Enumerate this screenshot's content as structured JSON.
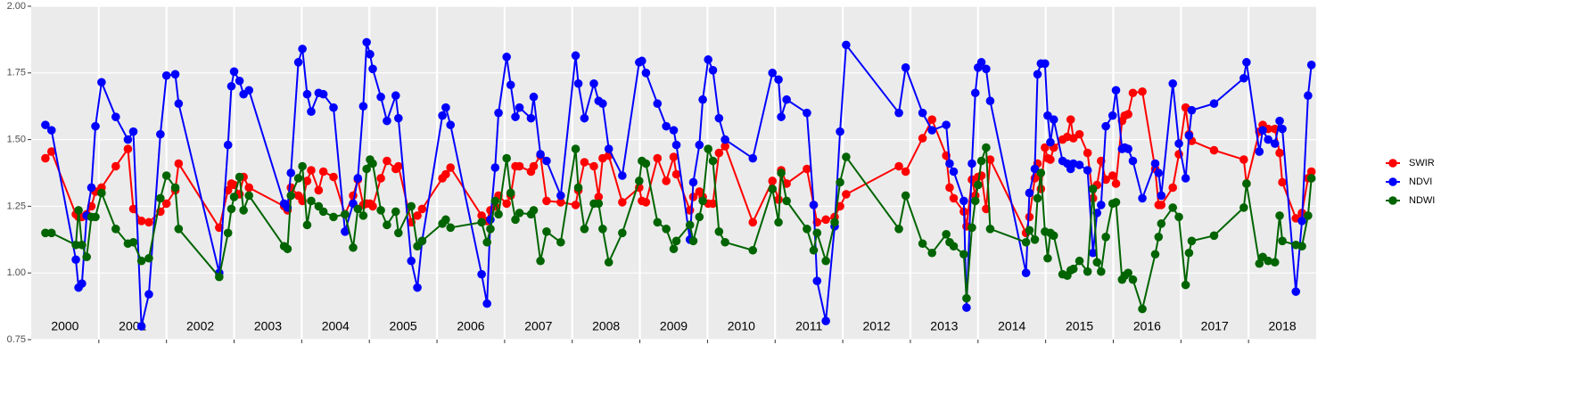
{
  "chart_data": {
    "type": "line",
    "x": [
      2000.21,
      2000.3,
      2000.66,
      2000.7,
      2000.75,
      2000.82,
      2000.89,
      2000.95,
      2001.04,
      2001.25,
      2001.43,
      2001.51,
      2001.63,
      2001.74,
      2001.91,
      2002.0,
      2002.13,
      2002.18,
      2002.78,
      2002.91,
      2002.96,
      2003.0,
      2003.08,
      2003.14,
      2003.22,
      2003.74,
      2003.79,
      2003.84,
      2003.95,
      2004.01,
      2004.08,
      2004.14,
      2004.25,
      2004.32,
      2004.47,
      2004.64,
      2004.76,
      2004.83,
      2004.91,
      2004.96,
      2005.01,
      2005.05,
      2005.17,
      2005.26,
      2005.39,
      2005.43,
      2005.62,
      2005.71,
      2005.78,
      2006.08,
      2006.13,
      2006.2,
      2006.66,
      2006.74,
      2006.79,
      2006.86,
      2006.91,
      2007.03,
      2007.09,
      2007.16,
      2007.22,
      2007.39,
      2007.43,
      2007.53,
      2007.62,
      2007.83,
      2008.05,
      2008.09,
      2008.18,
      2008.32,
      2008.39,
      2008.45,
      2008.54,
      2008.74,
      2008.99,
      2009.03,
      2009.09,
      2009.26,
      2009.39,
      2009.5,
      2009.54,
      2009.74,
      2009.79,
      2009.88,
      2009.93,
      2010.01,
      2010.08,
      2010.17,
      2010.26,
      2010.67,
      2010.96,
      2011.05,
      2011.09,
      2011.17,
      2011.47,
      2011.57,
      2011.62,
      2011.75,
      2011.88,
      2011.96,
      2012.05,
      2012.83,
      2012.93,
      2013.18,
      2013.32,
      2013.53,
      2013.58,
      2013.64,
      2013.79,
      2013.83,
      2013.91,
      2013.96,
      2014.0,
      2014.05,
      2014.12,
      2014.18,
      2014.71,
      2014.76,
      2014.84,
      2014.88,
      2014.93,
      2014.99,
      2015.03,
      2015.07,
      2015.12,
      2015.25,
      2015.32,
      2015.37,
      2015.41,
      2015.5,
      2015.62,
      2015.7,
      2015.76,
      2015.82,
      2015.89,
      2015.99,
      2016.04,
      2016.13,
      2016.17,
      2016.22,
      2016.29,
      2016.43,
      2016.62,
      2016.67,
      2016.71,
      2016.88,
      2016.97,
      2017.07,
      2017.12,
      2017.16,
      2017.49,
      2017.93,
      2017.97,
      2018.16,
      2018.21,
      2018.29,
      2018.39,
      2018.46,
      2018.5,
      2018.7,
      2018.79,
      2018.88,
      2018.93
    ],
    "series": [
      {
        "name": "SWIR",
        "color": "#ff0000",
        "values": [
          1.43,
          1.455,
          1.22,
          1.21,
          1.21,
          1.22,
          1.25,
          1.305,
          1.32,
          1.4,
          1.465,
          1.24,
          1.195,
          1.19,
          1.23,
          1.26,
          1.31,
          1.41,
          1.17,
          1.31,
          1.335,
          1.33,
          1.295,
          1.36,
          1.32,
          1.25,
          1.235,
          1.32,
          1.29,
          1.27,
          1.345,
          1.385,
          1.31,
          1.38,
          1.36,
          1.22,
          1.29,
          1.35,
          1.255,
          1.26,
          1.26,
          1.25,
          1.355,
          1.42,
          1.39,
          1.4,
          1.19,
          1.215,
          1.24,
          1.355,
          1.37,
          1.395,
          1.215,
          1.195,
          1.235,
          1.25,
          1.29,
          1.26,
          1.29,
          1.4,
          1.4,
          1.38,
          1.4,
          1.44,
          1.27,
          1.265,
          1.255,
          1.31,
          1.415,
          1.4,
          1.285,
          1.43,
          1.44,
          1.265,
          1.32,
          1.27,
          1.265,
          1.43,
          1.345,
          1.435,
          1.37,
          1.235,
          1.285,
          1.305,
          1.285,
          1.26,
          1.26,
          1.45,
          1.475,
          1.19,
          1.345,
          1.275,
          1.385,
          1.335,
          1.39,
          1.255,
          1.19,
          1.2,
          1.21,
          1.25,
          1.295,
          1.4,
          1.38,
          1.505,
          1.575,
          1.44,
          1.32,
          1.28,
          1.23,
          1.175,
          1.35,
          1.29,
          1.36,
          1.365,
          1.24,
          1.425,
          1.15,
          1.21,
          1.355,
          1.41,
          1.315,
          1.47,
          1.43,
          1.425,
          1.47,
          1.5,
          1.51,
          1.575,
          1.505,
          1.52,
          1.45,
          1.28,
          1.33,
          1.42,
          1.35,
          1.365,
          1.335,
          1.57,
          1.59,
          1.595,
          1.675,
          1.68,
          1.39,
          1.255,
          1.255,
          1.32,
          1.445,
          1.62,
          1.52,
          1.495,
          1.46,
          1.425,
          1.335,
          1.53,
          1.555,
          1.54,
          1.54,
          1.45,
          1.34,
          1.205,
          1.225,
          1.355,
          1.38
        ]
      },
      {
        "name": "NDVI",
        "color": "#0000ff",
        "values": [
          1.555,
          1.535,
          1.05,
          0.945,
          0.96,
          1.215,
          1.32,
          1.55,
          1.715,
          1.585,
          1.5,
          1.53,
          0.8,
          0.92,
          1.52,
          1.74,
          1.745,
          1.635,
          1.0,
          1.48,
          1.7,
          1.755,
          1.72,
          1.67,
          1.685,
          1.26,
          1.245,
          1.375,
          1.79,
          1.84,
          1.67,
          1.605,
          1.675,
          1.67,
          1.62,
          1.155,
          1.26,
          1.355,
          1.625,
          1.865,
          1.82,
          1.765,
          1.66,
          1.57,
          1.665,
          1.58,
          1.045,
          0.945,
          1.12,
          1.59,
          1.62,
          1.555,
          0.995,
          0.885,
          1.2,
          1.395,
          1.6,
          1.81,
          1.705,
          1.585,
          1.62,
          1.58,
          1.66,
          1.445,
          1.42,
          1.29,
          1.815,
          1.71,
          1.58,
          1.71,
          1.645,
          1.635,
          1.465,
          1.365,
          1.79,
          1.795,
          1.75,
          1.635,
          1.55,
          1.535,
          1.48,
          1.125,
          1.34,
          1.48,
          1.65,
          1.8,
          1.76,
          1.58,
          1.5,
          1.43,
          1.75,
          1.725,
          1.585,
          1.65,
          1.6,
          1.255,
          0.97,
          0.82,
          1.175,
          1.53,
          1.855,
          1.6,
          1.77,
          1.6,
          1.535,
          1.555,
          1.41,
          1.38,
          1.27,
          0.87,
          1.41,
          1.675,
          1.77,
          1.79,
          1.765,
          1.645,
          1.0,
          1.3,
          1.39,
          1.745,
          1.785,
          1.785,
          1.59,
          1.49,
          1.575,
          1.42,
          1.41,
          1.39,
          1.41,
          1.405,
          1.385,
          1.075,
          1.225,
          1.255,
          1.55,
          1.59,
          1.685,
          1.465,
          1.47,
          1.465,
          1.42,
          1.28,
          1.41,
          1.375,
          1.29,
          1.71,
          1.485,
          1.355,
          1.515,
          1.61,
          1.635,
          1.73,
          1.79,
          1.455,
          1.535,
          1.5,
          1.485,
          1.57,
          1.54,
          0.93,
          1.195,
          1.665,
          1.78
        ]
      },
      {
        "name": "NDWI",
        "color": "#006400",
        "values": [
          1.15,
          1.15,
          1.105,
          1.235,
          1.105,
          1.06,
          1.21,
          1.21,
          1.3,
          1.165,
          1.11,
          1.115,
          1.045,
          1.055,
          1.28,
          1.365,
          1.32,
          1.165,
          0.985,
          1.15,
          1.24,
          1.285,
          1.36,
          1.235,
          1.29,
          1.1,
          1.09,
          1.29,
          1.355,
          1.4,
          1.18,
          1.27,
          1.25,
          1.23,
          1.21,
          1.22,
          1.095,
          1.24,
          1.215,
          1.39,
          1.425,
          1.41,
          1.235,
          1.18,
          1.23,
          1.15,
          1.25,
          1.1,
          1.12,
          1.185,
          1.2,
          1.17,
          1.19,
          1.115,
          1.165,
          1.27,
          1.22,
          1.43,
          1.3,
          1.2,
          1.225,
          1.22,
          1.235,
          1.045,
          1.155,
          1.115,
          1.465,
          1.32,
          1.165,
          1.26,
          1.26,
          1.165,
          1.04,
          1.15,
          1.345,
          1.42,
          1.41,
          1.19,
          1.165,
          1.09,
          1.12,
          1.18,
          1.12,
          1.21,
          1.27,
          1.465,
          1.42,
          1.155,
          1.115,
          1.085,
          1.315,
          1.19,
          1.375,
          1.27,
          1.165,
          1.085,
          1.15,
          1.045,
          1.19,
          1.34,
          1.435,
          1.165,
          1.29,
          1.11,
          1.075,
          1.145,
          1.115,
          1.1,
          1.07,
          0.905,
          1.17,
          1.27,
          1.33,
          1.42,
          1.47,
          1.165,
          1.115,
          1.16,
          1.125,
          1.28,
          1.375,
          1.155,
          1.055,
          1.15,
          1.14,
          0.995,
          0.99,
          1.01,
          1.015,
          1.045,
          1.005,
          1.315,
          1.04,
          1.005,
          1.135,
          1.26,
          1.265,
          0.975,
          0.99,
          1.0,
          0.975,
          0.865,
          1.07,
          1.135,
          1.185,
          1.245,
          1.21,
          0.955,
          1.075,
          1.12,
          1.14,
          1.245,
          1.335,
          1.035,
          1.06,
          1.045,
          1.04,
          1.215,
          1.12,
          1.105,
          1.1,
          1.215,
          1.355
        ]
      }
    ],
    "xlim": [
      2000,
      2019
    ],
    "xticks": [
      2001,
      2002,
      2003,
      2004,
      2005,
      2006,
      2007,
      2008,
      2009,
      2010,
      2011,
      2012,
      2013,
      2014,
      2015,
      2016,
      2017,
      2018
    ],
    "ylim": [
      0.75,
      2.0
    ],
    "yticks": [
      {
        "value": 0.75,
        "label": "0.75"
      },
      {
        "value": 1,
        "label": "1.00"
      },
      {
        "value": 1.25,
        "label": "1.25"
      },
      {
        "value": 1.5,
        "label": "1.50"
      },
      {
        "value": 1.75,
        "label": "1.75"
      },
      {
        "value": 2,
        "label": "2.00"
      }
    ],
    "annotations": [
      {
        "x": 2000.5,
        "text": "2000"
      },
      {
        "x": 2001.5,
        "text": "2001"
      },
      {
        "x": 2002.5,
        "text": "2002"
      },
      {
        "x": 2003.5,
        "text": "2003"
      },
      {
        "x": 2004.5,
        "text": "2004"
      },
      {
        "x": 2005.5,
        "text": "2005"
      },
      {
        "x": 2006.5,
        "text": "2006"
      },
      {
        "x": 2007.5,
        "text": "2007"
      },
      {
        "x": 2008.5,
        "text": "2008"
      },
      {
        "x": 2009.5,
        "text": "2009"
      },
      {
        "x": 2010.5,
        "text": "2010"
      },
      {
        "x": 2011.5,
        "text": "2011"
      },
      {
        "x": 2012.5,
        "text": "2012"
      },
      {
        "x": 2013.5,
        "text": "2013"
      },
      {
        "x": 2014.5,
        "text": "2014"
      },
      {
        "x": 2015.5,
        "text": "2015"
      },
      {
        "x": 2016.5,
        "text": "2016"
      },
      {
        "x": 2017.5,
        "text": "2017"
      },
      {
        "x": 2018.5,
        "text": "2018"
      }
    ],
    "grid": true,
    "legend": "right"
  }
}
